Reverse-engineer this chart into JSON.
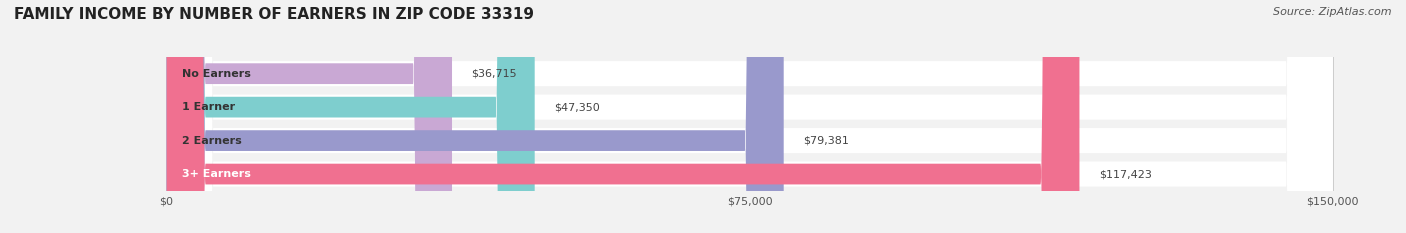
{
  "title": "FAMILY INCOME BY NUMBER OF EARNERS IN ZIP CODE 33319",
  "source": "Source: ZipAtlas.com",
  "categories": [
    "No Earners",
    "1 Earner",
    "2 Earners",
    "3+ Earners"
  ],
  "values": [
    36715,
    47350,
    79381,
    117423
  ],
  "value_labels": [
    "$36,715",
    "$47,350",
    "$79,381",
    "$117,423"
  ],
  "bar_colors": [
    "#c9a8d4",
    "#7ecece",
    "#9999cc",
    "#f07090"
  ],
  "bar_bg_color": "#e8e8e8",
  "pill_bg_color": "#f0f0f0",
  "xmax": 150000,
  "xticks": [
    0,
    75000,
    150000
  ],
  "xtick_labels": [
    "$0",
    "$75,000",
    "$150,000"
  ],
  "fig_bg_color": "#f2f2f2",
  "title_fontsize": 11,
  "source_fontsize": 8,
  "label_fontsize": 8,
  "value_fontsize": 8
}
